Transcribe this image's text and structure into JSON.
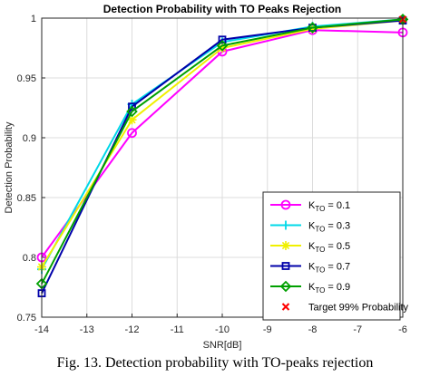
{
  "chart_data": {
    "type": "line",
    "title": "Detection Probability with TO Peaks Rejection",
    "xlabel": "SNR[dB]",
    "ylabel": "Detection Probability",
    "xlim": [
      -14,
      -6
    ],
    "ylim": [
      0.75,
      1
    ],
    "xticks": [
      -14,
      -13,
      -12,
      -11,
      -10,
      -9,
      -8,
      -7,
      -6
    ],
    "yticks": [
      0.75,
      0.8,
      0.85,
      0.9,
      0.95,
      1
    ],
    "grid": true,
    "legend_position": "bottom-right",
    "x": [
      -14,
      -12,
      -10,
      -8,
      -6
    ],
    "series": [
      {
        "name_main": "K",
        "name_sub": "TO",
        "name_rest": " = 0.1",
        "values": [
          0.8,
          0.904,
          0.972,
          0.99,
          0.988
        ],
        "color": "#ff00ff",
        "marker": "circle"
      },
      {
        "name_main": "K",
        "name_sub": "TO",
        "name_rest": " = 0.3",
        "values": [
          0.79,
          0.928,
          0.98,
          0.993,
          0.999
        ],
        "color": "#00d8e8",
        "marker": "plus"
      },
      {
        "name_main": "K",
        "name_sub": "TO",
        "name_rest": " = 0.5",
        "values": [
          0.792,
          0.915,
          0.975,
          0.991,
          0.998
        ],
        "color": "#f0f000",
        "marker": "asterisk"
      },
      {
        "name_main": "K",
        "name_sub": "TO",
        "name_rest": " = 0.7",
        "values": [
          0.77,
          0.926,
          0.982,
          0.992,
          0.998
        ],
        "color": "#0000aa",
        "marker": "square"
      },
      {
        "name_main": "K",
        "name_sub": "TO",
        "name_rest": " = 0.9",
        "values": [
          0.778,
          0.922,
          0.977,
          0.992,
          0.999
        ],
        "color": "#00a000",
        "marker": "diamond"
      },
      {
        "name": "Target 99% Probability",
        "x": [
          -6
        ],
        "values": [
          0.999
        ],
        "color": "#ff0000",
        "marker": "x"
      }
    ]
  },
  "caption": "Fig. 13. Detection probability with TO-peaks rejection"
}
